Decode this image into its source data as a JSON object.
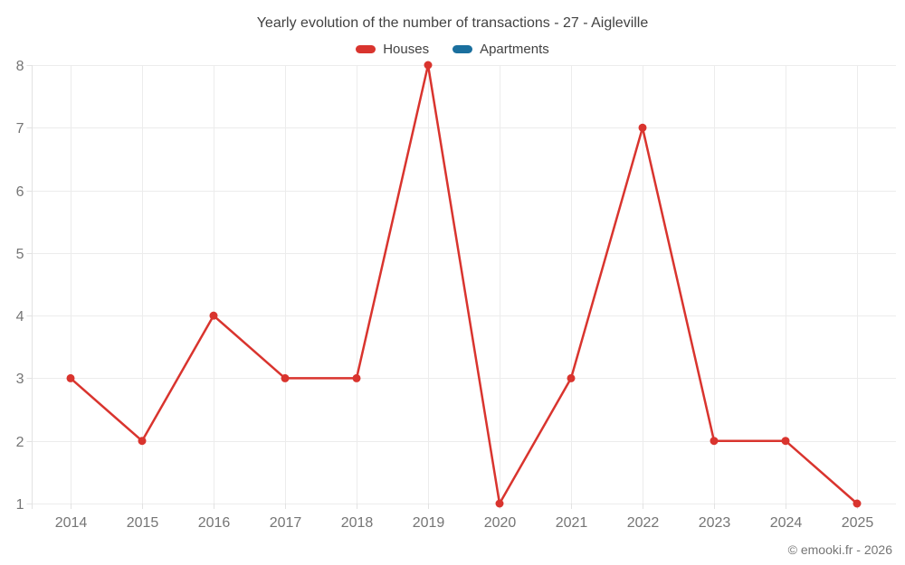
{
  "header": {
    "title": "Yearly evolution of the number of transactions - 27 - Aigleville"
  },
  "legend": {
    "items": [
      {
        "label": "Houses",
        "color": "#d9342e"
      },
      {
        "label": "Apartments",
        "color": "#1a6f9e"
      }
    ]
  },
  "footer": {
    "copyright": "© emooki.fr - 2026"
  },
  "chart_data": {
    "type": "line",
    "title": "Yearly evolution of the number of transactions - 27 - Aigleville",
    "categories": [
      "2014",
      "2015",
      "2016",
      "2017",
      "2018",
      "2019",
      "2020",
      "2021",
      "2022",
      "2023",
      "2024",
      "2025"
    ],
    "series": [
      {
        "name": "Houses",
        "color": "#d9342e",
        "values": [
          3,
          2,
          4,
          3,
          3,
          8,
          1,
          3,
          7,
          2,
          2,
          1
        ]
      },
      {
        "name": "Apartments",
        "color": "#1a6f9e",
        "values": []
      }
    ],
    "xlabel": "",
    "ylabel": "",
    "ylim": [
      1,
      8
    ],
    "yticks": [
      1,
      2,
      3,
      4,
      5,
      6,
      7,
      8
    ],
    "grid": true,
    "legend_position": "top"
  },
  "style_colors": {
    "grid_line": "#ececec",
    "axis_line": "#e2e2e2",
    "tick_label": "#757575",
    "title_text": "#424242"
  }
}
